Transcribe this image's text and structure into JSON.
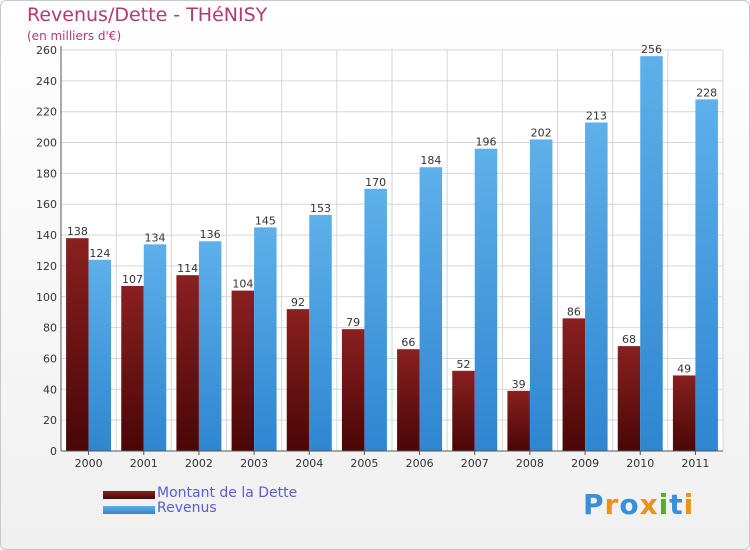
{
  "header": {
    "title": "Revenus/Dette - THéNISY",
    "subtitle": "(en milliers d'€)"
  },
  "chart_data": {
    "type": "bar",
    "title": "Revenus/Dette - THéNISY",
    "subtitle": "(en milliers d'€)",
    "xlabel": "",
    "ylabel": "",
    "categories": [
      "2000",
      "2001",
      "2002",
      "2003",
      "2004",
      "2005",
      "2006",
      "2007",
      "2008",
      "2009",
      "2010",
      "2011"
    ],
    "series": [
      {
        "name": "Montant de la Dette",
        "values": [
          138,
          107,
          114,
          104,
          92,
          79,
          66,
          52,
          39,
          86,
          68,
          49
        ],
        "color": "#7a1414"
      },
      {
        "name": "Revenus",
        "values": [
          124,
          134,
          136,
          145,
          153,
          170,
          184,
          196,
          202,
          213,
          256,
          228
        ],
        "color": "#4a9fe0"
      }
    ],
    "ylim": [
      0,
      260
    ],
    "yticks": [
      0,
      20,
      40,
      60,
      80,
      100,
      120,
      140,
      160,
      180,
      200,
      220,
      240,
      260
    ],
    "grid": true,
    "legend": "bottom-left"
  },
  "colors": {
    "debt_dark": "#4a0606",
    "debt_light": "#8a2020",
    "revenue_dark": "#2f86d0",
    "revenue_light": "#5eb0ea",
    "title": "#b03a72",
    "legend_text": "#5b5bd8"
  },
  "logo": {
    "letters": [
      "P",
      "r",
      "o",
      "x",
      "i",
      "t",
      "i"
    ],
    "colors": [
      "#3a8fd8",
      "#e8941a",
      "#3a8fd8",
      "#e8941a",
      "#5aaa2a",
      "#3a8fd8",
      "#e8941a"
    ]
  }
}
